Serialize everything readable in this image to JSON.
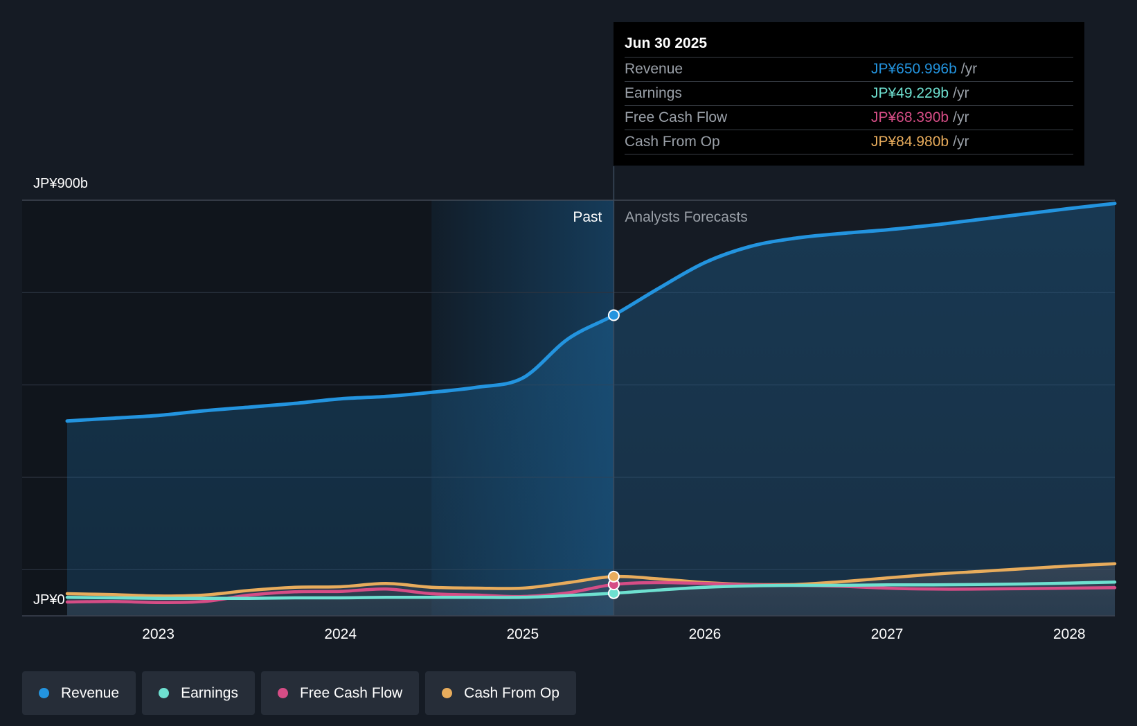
{
  "colors": {
    "background": "#151b24",
    "revenue": "#2394df",
    "earnings": "#6ee0d0",
    "free_cash_flow": "#d64d86",
    "cash_from_op": "#e8ac5c",
    "muted": "#9aa0a8"
  },
  "tooltip": {
    "date": "Jun 30 2025",
    "rows": [
      {
        "label": "Revenue",
        "value": "JP¥650.996b",
        "unit": "/yr"
      },
      {
        "label": "Earnings",
        "value": "JP¥49.229b",
        "unit": "/yr"
      },
      {
        "label": "Free Cash Flow",
        "value": "JP¥68.390b",
        "unit": "/yr"
      },
      {
        "label": "Cash From Op",
        "value": "JP¥84.980b",
        "unit": "/yr"
      }
    ]
  },
  "legend": [
    {
      "label": "Revenue",
      "color": "#2394df"
    },
    {
      "label": "Earnings",
      "color": "#6ee0d0"
    },
    {
      "label": "Free Cash Flow",
      "color": "#d64d86"
    },
    {
      "label": "Cash From Op",
      "color": "#e8ac5c"
    }
  ],
  "chart_data": {
    "type": "line",
    "title": "",
    "xlabel": "",
    "ylabel": "",
    "y_top_label": "JP¥900b",
    "y_bottom_label": "JP¥0",
    "ylim": [
      0,
      900
    ],
    "xlim": [
      2022.5,
      2028.25
    ],
    "x_ticks": [
      2023,
      2024,
      2025,
      2026,
      2027,
      2028
    ],
    "x_tick_labels": [
      "2023",
      "2024",
      "2025",
      "2026",
      "2027",
      "2028"
    ],
    "past_label": "Past",
    "forecast_label": "Analysts Forecasts",
    "past_highlight_start": 2024.5,
    "forecast_start": 2025.5,
    "legend_position": "bottom",
    "series": [
      {
        "name": "Revenue",
        "color": "#2394df",
        "points": [
          [
            2022.5,
            422
          ],
          [
            2022.75,
            428
          ],
          [
            2023.0,
            434
          ],
          [
            2023.25,
            444
          ],
          [
            2023.5,
            452
          ],
          [
            2023.75,
            460
          ],
          [
            2024.0,
            470
          ],
          [
            2024.25,
            475
          ],
          [
            2024.5,
            484
          ],
          [
            2024.75,
            495
          ],
          [
            2025.0,
            515
          ],
          [
            2025.25,
            600
          ],
          [
            2025.5,
            651
          ],
          [
            2025.75,
            710
          ],
          [
            2026.0,
            765
          ],
          [
            2026.25,
            800
          ],
          [
            2026.5,
            818
          ],
          [
            2026.75,
            828
          ],
          [
            2027.0,
            836
          ],
          [
            2027.25,
            846
          ],
          [
            2027.5,
            858
          ],
          [
            2027.75,
            870
          ],
          [
            2028.0,
            882
          ],
          [
            2028.25,
            893
          ]
        ]
      },
      {
        "name": "Earnings",
        "color": "#6ee0d0",
        "points": [
          [
            2022.5,
            40
          ],
          [
            2022.75,
            39
          ],
          [
            2023.0,
            38
          ],
          [
            2023.25,
            38
          ],
          [
            2023.5,
            38
          ],
          [
            2023.75,
            39
          ],
          [
            2024.0,
            39
          ],
          [
            2024.25,
            40
          ],
          [
            2024.5,
            40
          ],
          [
            2024.75,
            40
          ],
          [
            2025.0,
            40
          ],
          [
            2025.25,
            44
          ],
          [
            2025.5,
            49
          ],
          [
            2025.75,
            56
          ],
          [
            2026.0,
            62
          ],
          [
            2026.25,
            65
          ],
          [
            2026.5,
            66
          ],
          [
            2026.75,
            66
          ],
          [
            2027.0,
            67
          ],
          [
            2027.25,
            67
          ],
          [
            2027.5,
            68
          ],
          [
            2027.75,
            69
          ],
          [
            2028.0,
            71
          ],
          [
            2028.25,
            73
          ]
        ]
      },
      {
        "name": "Free Cash Flow",
        "color": "#d64d86",
        "points": [
          [
            2022.5,
            30
          ],
          [
            2022.75,
            31
          ],
          [
            2023.0,
            29
          ],
          [
            2023.25,
            31
          ],
          [
            2023.5,
            45
          ],
          [
            2023.75,
            52
          ],
          [
            2024.0,
            53
          ],
          [
            2024.25,
            58
          ],
          [
            2024.5,
            48
          ],
          [
            2024.75,
            45
          ],
          [
            2025.0,
            42
          ],
          [
            2025.25,
            50
          ],
          [
            2025.5,
            68
          ],
          [
            2025.75,
            72
          ],
          [
            2026.0,
            70
          ],
          [
            2026.25,
            67
          ],
          [
            2026.5,
            66
          ],
          [
            2026.75,
            64
          ],
          [
            2027.0,
            60
          ],
          [
            2027.25,
            58
          ],
          [
            2027.5,
            58
          ],
          [
            2027.75,
            59
          ],
          [
            2028.0,
            60
          ],
          [
            2028.25,
            61
          ]
        ]
      },
      {
        "name": "Cash From Op",
        "color": "#e8ac5c",
        "points": [
          [
            2022.5,
            48
          ],
          [
            2022.75,
            46
          ],
          [
            2023.0,
            43
          ],
          [
            2023.25,
            45
          ],
          [
            2023.5,
            55
          ],
          [
            2023.75,
            62
          ],
          [
            2024.0,
            63
          ],
          [
            2024.25,
            70
          ],
          [
            2024.5,
            62
          ],
          [
            2024.75,
            60
          ],
          [
            2025.0,
            60
          ],
          [
            2025.25,
            72
          ],
          [
            2025.5,
            85
          ],
          [
            2025.75,
            80
          ],
          [
            2026.0,
            72
          ],
          [
            2026.25,
            68
          ],
          [
            2026.5,
            68
          ],
          [
            2026.75,
            74
          ],
          [
            2027.0,
            82
          ],
          [
            2027.25,
            90
          ],
          [
            2027.5,
            96
          ],
          [
            2027.75,
            102
          ],
          [
            2028.0,
            108
          ],
          [
            2028.25,
            113
          ]
        ]
      }
    ],
    "highlight_x": 2025.5
  }
}
